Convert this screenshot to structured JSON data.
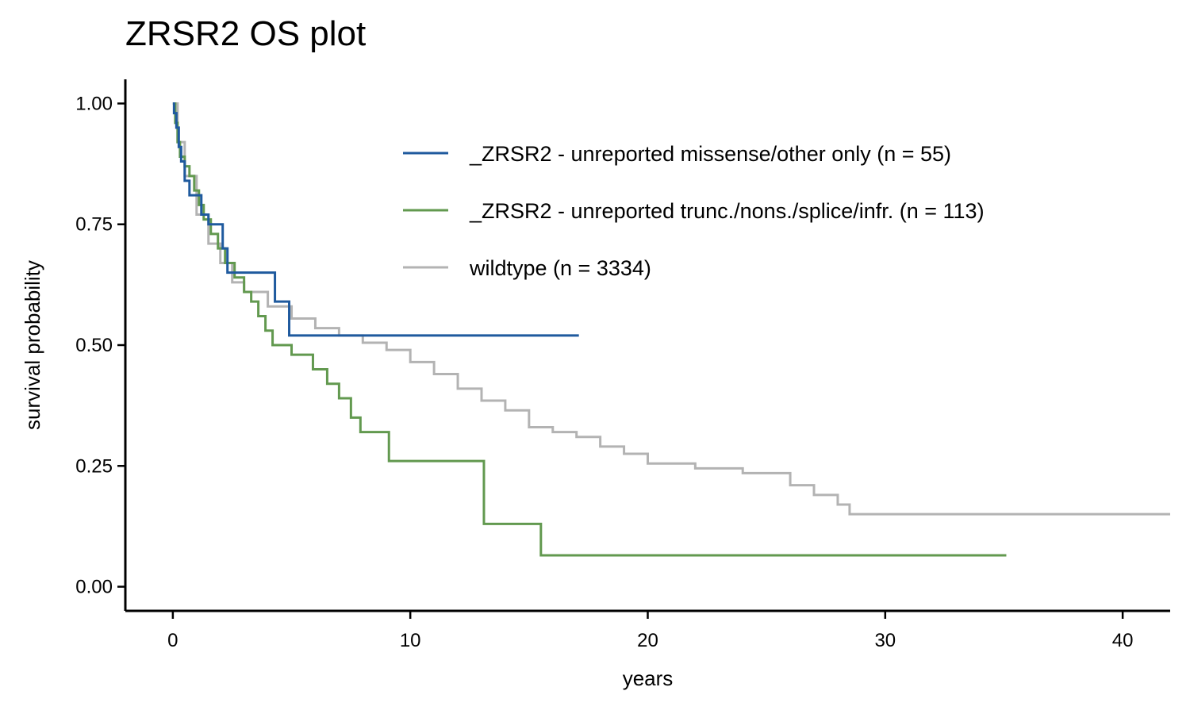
{
  "chart_data": {
    "type": "line",
    "title": "ZRSR2 OS plot",
    "xlabel": "years",
    "ylabel": "survival probability",
    "xlim": [
      -2,
      42
    ],
    "ylim": [
      -0.05,
      1.05
    ],
    "x_ticks": [
      0,
      10,
      20,
      30,
      40
    ],
    "y_ticks": [
      0.0,
      0.25,
      0.5,
      0.75,
      1.0
    ],
    "x_tick_labels": [
      "0",
      "10",
      "20",
      "30",
      "40"
    ],
    "y_tick_labels": [
      "0.00",
      "0.25",
      "0.50",
      "0.75",
      "1.00"
    ],
    "grid": false,
    "legend_position": "top-right",
    "step": true,
    "series": [
      {
        "name": "_ZRSR2 - unreported missense/other only (n = 55)",
        "color": "#1f5a9e",
        "x": [
          0,
          0.05,
          0.15,
          0.25,
          0.35,
          0.5,
          0.7,
          1.2,
          1.5,
          2.1,
          2.3,
          4.3,
          4.9,
          17.1
        ],
        "y": [
          1.0,
          0.98,
          0.95,
          0.91,
          0.88,
          0.84,
          0.81,
          0.77,
          0.75,
          0.7,
          0.65,
          0.59,
          0.52,
          0.52
        ]
      },
      {
        "name": "_ZRSR2 - unreported trunc./nons./splice/infr. (n = 113)",
        "color": "#62994f",
        "x": [
          0,
          0.1,
          0.2,
          0.3,
          0.5,
          0.7,
          0.9,
          1.1,
          1.3,
          1.6,
          1.9,
          2.2,
          2.6,
          3.0,
          3.3,
          3.6,
          3.9,
          4.2,
          5.0,
          5.9,
          6.5,
          7.0,
          7.5,
          7.9,
          9.1,
          13.1,
          15.5,
          35.1
        ],
        "y": [
          1.0,
          0.96,
          0.92,
          0.89,
          0.87,
          0.85,
          0.82,
          0.79,
          0.76,
          0.73,
          0.7,
          0.67,
          0.64,
          0.61,
          0.59,
          0.56,
          0.53,
          0.5,
          0.48,
          0.45,
          0.42,
          0.39,
          0.35,
          0.32,
          0.26,
          0.13,
          0.065,
          0.065
        ]
      },
      {
        "name": "wildtype (n = 3334)",
        "color": "#b3b3b3",
        "x": [
          0,
          0.2,
          0.5,
          1.0,
          1.5,
          2.0,
          2.5,
          3.0,
          4.0,
          5.0,
          6.0,
          7.0,
          8.0,
          9.0,
          10.0,
          11.0,
          12.0,
          13.0,
          14.0,
          15.0,
          16.0,
          17.0,
          18.0,
          19.0,
          20.0,
          22.0,
          24.0,
          26.0,
          27.0,
          28.0,
          28.5,
          42.0
        ],
        "y": [
          1.0,
          0.92,
          0.85,
          0.77,
          0.71,
          0.67,
          0.63,
          0.61,
          0.58,
          0.555,
          0.535,
          0.52,
          0.505,
          0.49,
          0.465,
          0.44,
          0.41,
          0.385,
          0.365,
          0.33,
          0.32,
          0.31,
          0.29,
          0.275,
          0.255,
          0.245,
          0.235,
          0.21,
          0.19,
          0.17,
          0.15,
          0.15
        ]
      }
    ]
  }
}
